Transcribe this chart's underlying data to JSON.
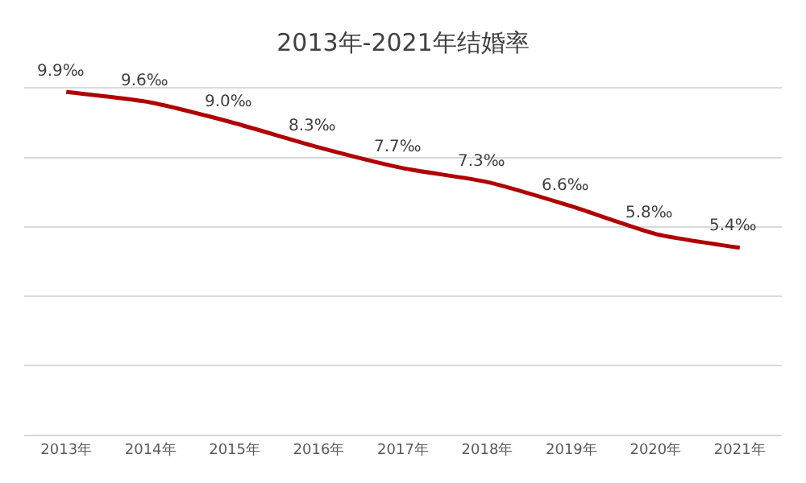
{
  "chart_data": {
    "type": "line",
    "title": "2013年-2021年结婚率",
    "categories": [
      "2013年",
      "2014年",
      "2015年",
      "2016年",
      "2017年",
      "2018年",
      "2019年",
      "2020年",
      "2021年"
    ],
    "series": [
      {
        "color": "#b00000",
        "values": [
          9.9,
          9.6,
          9.0,
          8.3,
          7.7,
          7.3,
          6.6,
          5.8,
          5.4
        ],
        "value_labels": [
          "9.9‰",
          "9.6‰",
          "9.0‰",
          "8.3‰",
          "7.7‰",
          "7.3‰",
          "6.6‰",
          "5.8‰",
          "5.4‰"
        ]
      }
    ],
    "ylim": [
      0,
      10
    ],
    "yticks": [
      {
        "value": 0,
        "label": null
      },
      {
        "value": 2,
        "label": null
      },
      {
        "value": 4,
        "label": null
      },
      {
        "value": 6,
        "label": null
      },
      {
        "value": 8,
        "label": null
      },
      {
        "value": 10,
        "label": null
      }
    ],
    "grid": "y",
    "tick_labels": "x",
    "marker": "none",
    "line_style": "solid"
  }
}
